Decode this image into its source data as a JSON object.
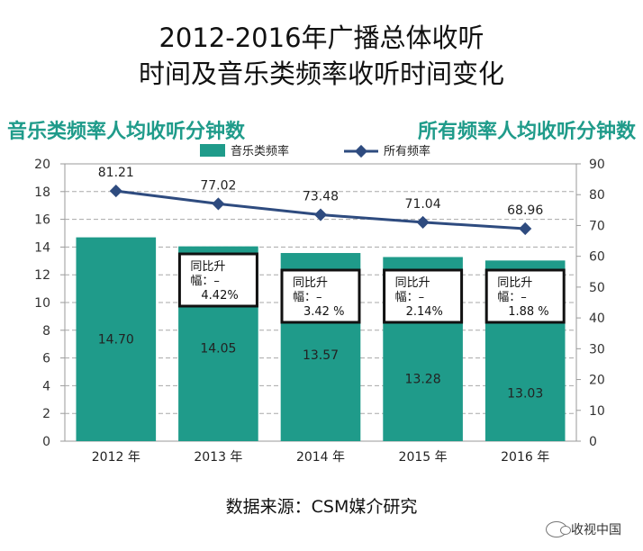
{
  "title_line1": "2012-2016年广播总体收听",
  "title_line2": "时间及音乐类频率收听时间变化",
  "left_axis_title": "音乐类频率人均收听分钟数",
  "right_axis_title": "所有频率人均收听分钟数",
  "source": "数据来源：CSM媒介研究",
  "watermark": "收视中国",
  "chart_data": {
    "type": "bar",
    "categories": [
      "2012 年",
      "2013 年",
      "2014 年",
      "2015 年",
      "2016 年"
    ],
    "series": [
      {
        "name": "音乐类频率",
        "type": "bar",
        "axis": "left",
        "color": "#1f9b8a",
        "values": [
          14.7,
          14.05,
          13.57,
          13.28,
          13.03
        ],
        "labels": [
          "14.70",
          "14.05",
          "13.57",
          "13.28",
          "13.03"
        ]
      },
      {
        "name": "所有频率",
        "type": "line",
        "axis": "right",
        "color": "#2e4b7f",
        "values": [
          81.21,
          77.02,
          73.48,
          71.04,
          68.96
        ],
        "labels": [
          "81.21",
          "77.02",
          "73.48",
          "71.04",
          "68.96"
        ]
      }
    ],
    "y_left": {
      "min": 0,
      "max": 20,
      "ticks": [
        "0",
        "2",
        "4",
        "6",
        "8",
        "10",
        "12",
        "14",
        "16",
        "18",
        "20"
      ]
    },
    "y_right": {
      "min": 0,
      "max": 90,
      "ticks": [
        "0",
        "10",
        "20",
        "30",
        "40",
        "50",
        "60",
        "70",
        "80",
        "90"
      ]
    },
    "grid": "horizontal dashed",
    "legend": "top-center",
    "annotations": [
      {
        "category": "2013 年",
        "line1": "同比升",
        "line2": "幅：–",
        "line3": "4.42%"
      },
      {
        "category": "2014 年",
        "line1": "同比升",
        "line2": "幅：–",
        "line3": "3.42 %"
      },
      {
        "category": "2015 年",
        "line1": "同比升",
        "line2": "幅：–",
        "line3": "2.14%"
      },
      {
        "category": "2016 年",
        "line1": "同比升",
        "line2": "幅：–",
        "line3": "1.88 %"
      }
    ]
  }
}
